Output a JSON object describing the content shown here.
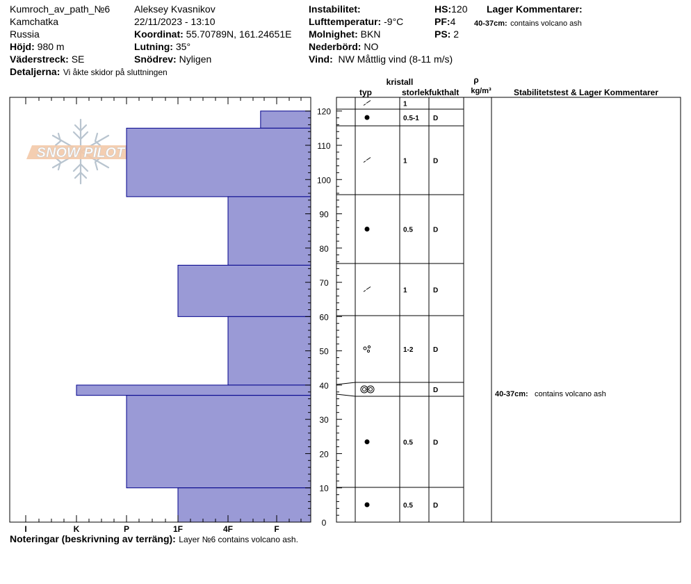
{
  "header": {
    "col1": {
      "location": "Kumroch_av_path_№6",
      "region": "Kamchatka",
      "country": "Russia",
      "elevation_label": "Höjd:",
      "elevation_value": "980 m",
      "aspect_label": "Väderstreck:",
      "aspect_value": "SE",
      "details_label": "Detaljerna:",
      "details_value": "Vi åkte skidor på sluttningen"
    },
    "col2": {
      "observer": "Aleksey Kvasnikov",
      "datetime": "22/11/2023 - 13:10",
      "coord_label": "Koordinat:",
      "coord_value": "55.70789N, 161.24651E",
      "slope_label": "Lutning:",
      "slope_value": "35°",
      "drift_label": "Snödrev:",
      "drift_value": "Nyligen"
    },
    "col3": {
      "instability_label": "Instabilitet:",
      "airtemp_label": "Lufttemperatur:",
      "airtemp_value": "-9°C",
      "cloud_label": "Molnighet:",
      "cloud_value": "BKN",
      "precip_label": "Nederbörd:",
      "precip_value": "NO",
      "wind_label": "Vind:",
      "wind_value": "NW Måttlig vind (8-11 m/s)"
    },
    "col4": {
      "hs_label": "HS:",
      "hs_value": "120",
      "pf_label": "PF:",
      "pf_value": "4",
      "ps_label": "PS:",
      "ps_value": "2"
    },
    "layer_comments": {
      "title": "Lager Kommentarer:",
      "depth": "40-37cm:",
      "text": "contains volcano ash"
    }
  },
  "logo_text": "SNOW PILOT",
  "columns": {
    "crystal": "kristall",
    "type": "typ",
    "size": "storlek",
    "moisture": "fukthalt",
    "rho": "ρ",
    "density_unit": "kg/m³",
    "stability": "Stabilitetstest & Lager Kommentarer"
  },
  "notes": {
    "label": "Noteringar (beskrivning av terräng):",
    "text": "Layer №6 contains volcano ash."
  },
  "colors": {
    "bar_fill": "#9a9ad6",
    "bar_stroke": "#00008b"
  },
  "chart_data": {
    "type": "bar",
    "orientation": "horizontal",
    "x_categories": [
      "I",
      "K",
      "P",
      "1F",
      "4F",
      "F"
    ],
    "y_ticks": [
      0,
      10,
      20,
      30,
      40,
      50,
      60,
      70,
      80,
      90,
      100,
      110,
      120
    ],
    "ylim": [
      0,
      124
    ],
    "hardness_scale_max": 6,
    "layers": [
      {
        "top": 120,
        "bottom": 115,
        "hardness": 1.0,
        "crystal": "decomposing",
        "size": "1",
        "moisture": ""
      },
      {
        "top": 115,
        "bottom": 95,
        "hardness": 3.75,
        "crystal": "round",
        "size": "0.5-1",
        "moisture": "D",
        "row_top": 115,
        "row_bottom": 120
      },
      {
        "top": 95,
        "bottom": 75,
        "hardness": 1.75,
        "crystal": "decomposing",
        "size": "1",
        "moisture": "D"
      },
      {
        "top": 75,
        "bottom": 60,
        "hardness": 2.75,
        "crystal": "round",
        "size": "0.5",
        "moisture": "D"
      },
      {
        "top": 60,
        "bottom": 40,
        "hardness": 1.75,
        "crystal": "decomposing",
        "size": "1",
        "moisture": "D"
      },
      {
        "top": 40,
        "bottom": 37,
        "hardness": 4.75,
        "crystal": "faceted-round",
        "size": "1-2",
        "moisture": "D"
      },
      {
        "top": 37,
        "bottom": 10,
        "hardness": 3.75,
        "crystal": "ice",
        "size": "",
        "moisture": "D"
      },
      {
        "top": 10,
        "bottom": 0,
        "hardness": 2.75,
        "crystal": "round",
        "size": "0.5",
        "moisture": "D"
      }
    ],
    "table_rows": [
      {
        "top": 120,
        "bottom": 115,
        "crystal": "decomposing",
        "size": "1",
        "moisture": ""
      },
      {
        "top": 115,
        "bottom": 95,
        "crystal": "decomposing",
        "size": "1",
        "moisture": "D"
      },
      {
        "top": 95,
        "bottom": 75,
        "crystal": "round",
        "size": "0.5",
        "moisture": "D"
      },
      {
        "top": 75,
        "bottom": 60,
        "crystal": "decomposing",
        "size": "1",
        "moisture": "D"
      },
      {
        "top": 60,
        "bottom": 40,
        "crystal": "faceted-round",
        "size": "1-2",
        "moisture": "D"
      },
      {
        "top": 40,
        "bottom": 37,
        "crystal": "ice",
        "size": "",
        "moisture": "D",
        "comment_depth": "40-37cm:",
        "comment": "contains volcano ash"
      },
      {
        "top": 37,
        "bottom": 10,
        "crystal": "round",
        "size": "0.5",
        "moisture": "D"
      },
      {
        "top": 10,
        "bottom": 0,
        "crystal": "round",
        "size": "0.5",
        "moisture": "D"
      }
    ],
    "top_row": {
      "top": 124,
      "bottom": 120,
      "crystal": "decomposing",
      "size": "1",
      "moisture": ""
    },
    "second_row": {
      "top": 120,
      "bottom": 115,
      "crystal": "round",
      "size": "0.5-1",
      "moisture": "D"
    }
  }
}
